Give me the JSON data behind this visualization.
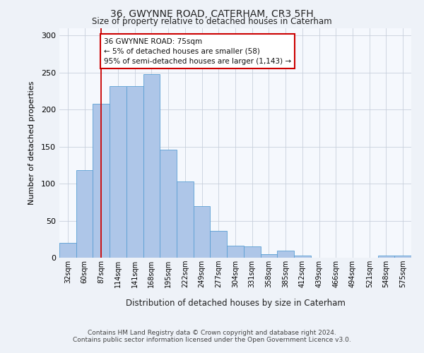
{
  "title1": "36, GWYNNE ROAD, CATERHAM, CR3 5FH",
  "title2": "Size of property relative to detached houses in Caterham",
  "xlabel": "Distribution of detached houses by size in Caterham",
  "ylabel": "Number of detached properties",
  "categories": [
    "32sqm",
    "60sqm",
    "87sqm",
    "114sqm",
    "141sqm",
    "168sqm",
    "195sqm",
    "222sqm",
    "249sqm",
    "277sqm",
    "304sqm",
    "331sqm",
    "358sqm",
    "385sqm",
    "412sqm",
    "439sqm",
    "466sqm",
    "494sqm",
    "521sqm",
    "548sqm",
    "575sqm"
  ],
  "values": [
    20,
    118,
    208,
    232,
    232,
    248,
    146,
    103,
    70,
    36,
    16,
    15,
    5,
    10,
    3,
    0,
    0,
    0,
    0,
    3,
    3
  ],
  "bar_color": "#aec6e8",
  "bar_edge_color": "#5a9fd4",
  "vline_x": 2.0,
  "vline_color": "#cc0000",
  "annotation_text": "36 GWYNNE ROAD: 75sqm\n← 5% of detached houses are smaller (58)\n95% of semi-detached houses are larger (1,143) →",
  "annotation_box_color": "#ffffff",
  "annotation_box_edge": "#cc0000",
  "ylim": [
    0,
    310
  ],
  "yticks": [
    0,
    50,
    100,
    150,
    200,
    250,
    300
  ],
  "footer_line1": "Contains HM Land Registry data © Crown copyright and database right 2024.",
  "footer_line2": "Contains public sector information licensed under the Open Government Licence v3.0.",
  "bg_color": "#eef2f8",
  "plot_bg_color": "#f5f8fd"
}
